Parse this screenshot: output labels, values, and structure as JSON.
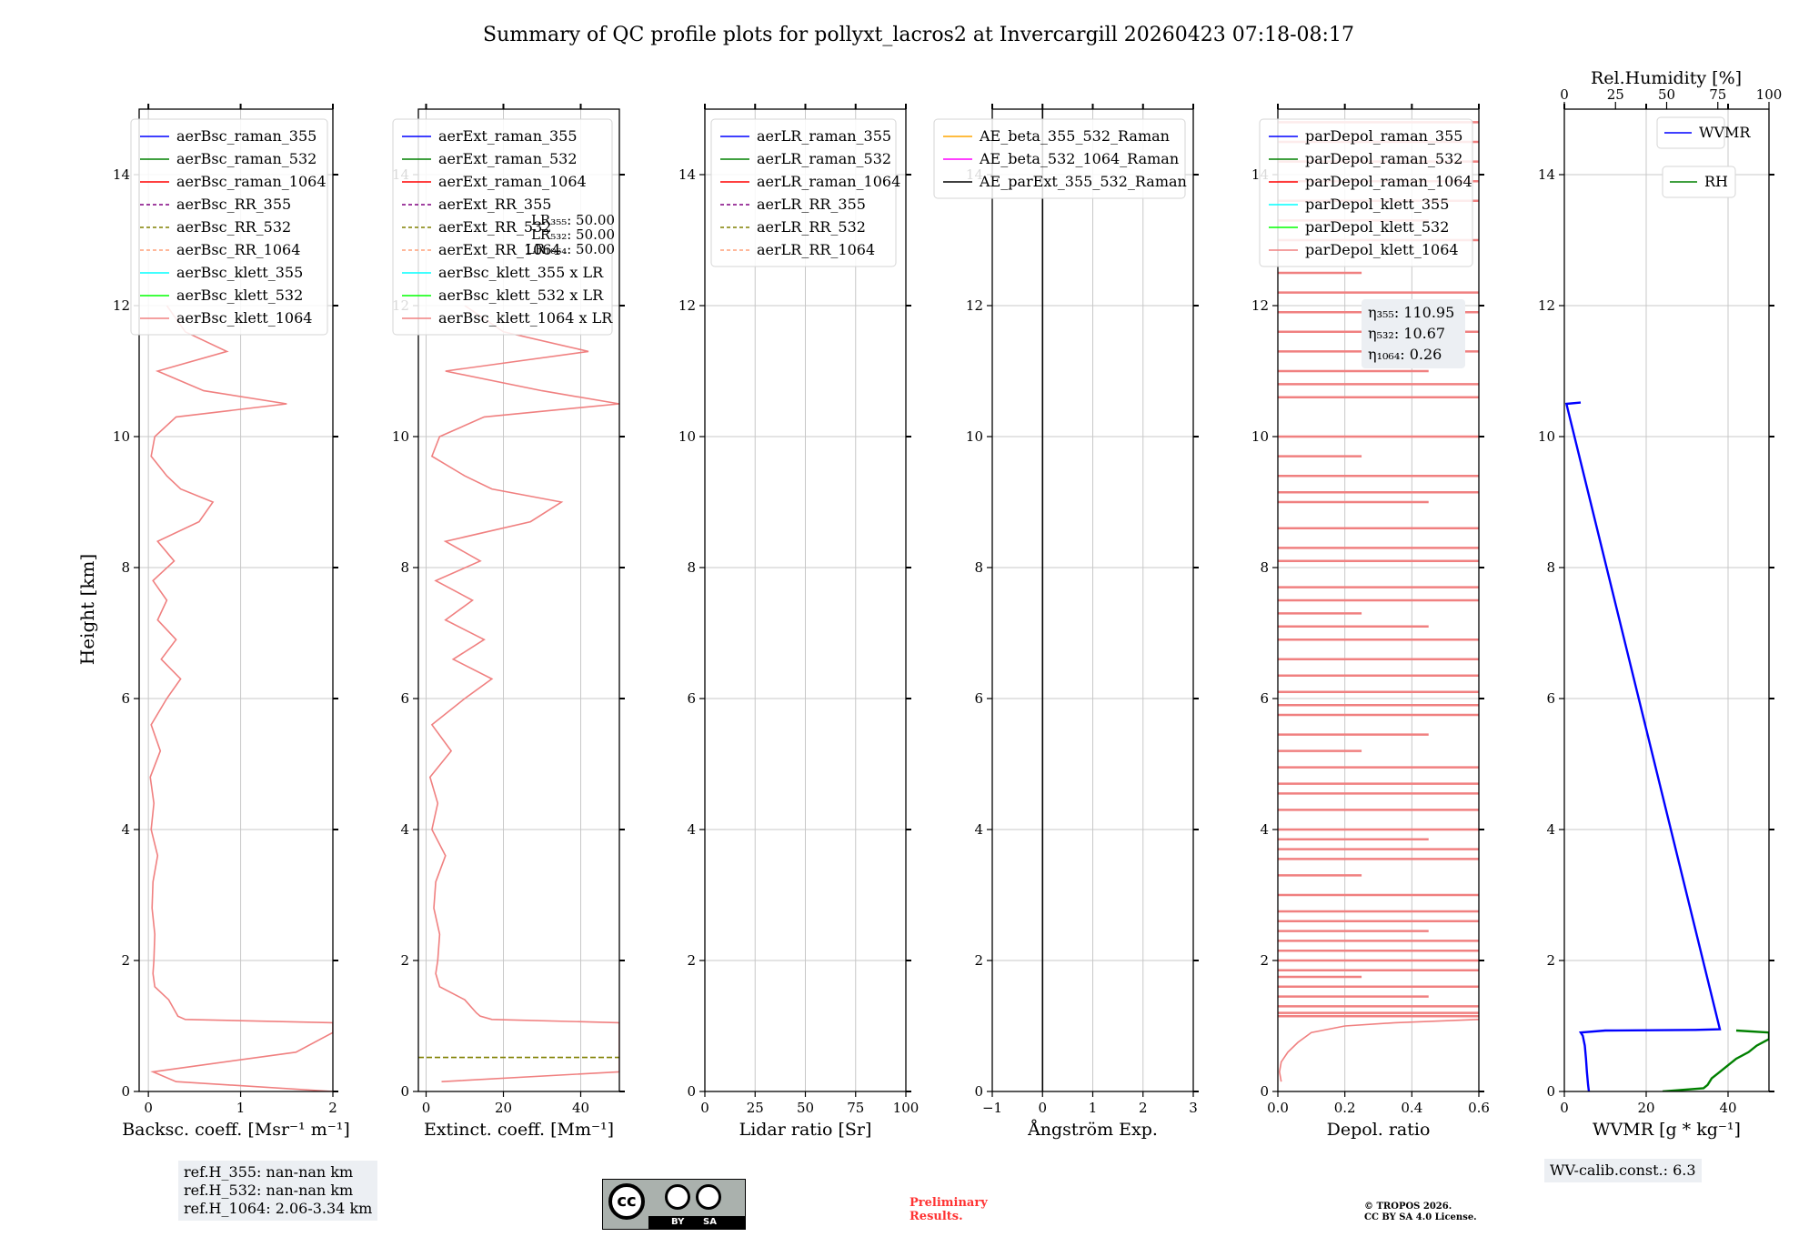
{
  "title": "Summary of QC profile plots for pollyxt_lacros2 at Invercargill 20260423 07:18-08:17",
  "ylabel": "Height [km]",
  "y_ticks": [
    "0",
    "2",
    "4",
    "6",
    "8",
    "10",
    "12",
    "14"
  ],
  "colors": {
    "klett_1064": "#f08080",
    "blue": "#0000ff",
    "green": "#008000",
    "red": "#ff0000",
    "purple": "#800080",
    "olive": "#808000",
    "salmon": "#ffa07a",
    "cyan": "#00ffff",
    "lime": "#00ff00",
    "orange": "#ffa500",
    "magenta": "#ff00ff",
    "black": "#000000"
  },
  "panels": {
    "bsc": {
      "xlabel": "Backsc. coeff. [Msr⁻¹ m⁻¹]",
      "x_ticks": [
        "0",
        "1",
        "2"
      ],
      "legend": [
        "aerBsc_raman_355",
        "aerBsc_raman_532",
        "aerBsc_raman_1064",
        "aerBsc_RR_355",
        "aerBsc_RR_532",
        "aerBsc_RR_1064",
        "aerBsc_klett_355",
        "aerBsc_klett_532",
        "aerBsc_klett_1064"
      ]
    },
    "ext": {
      "xlabel": "Extinct. coeff. [Mm⁻¹]",
      "x_ticks": [
        "0",
        "20",
        "40"
      ],
      "legend": [
        "aerExt_raman_355",
        "aerExt_raman_532",
        "aerExt_raman_1064",
        "aerExt_RR_355",
        "aerExt_RR_532",
        "aerExt_RR_1064",
        "aerBsc_klett_355 x LR",
        "aerBsc_klett_532 x LR",
        "aerBsc_klett_1064 x LR"
      ],
      "lr_labels": [
        "LR₃₅₅: 50.00",
        "LR₅₃₂: 50.00",
        "LR₁₀₆₄: 50.00"
      ]
    },
    "lr": {
      "xlabel": "Lidar ratio [Sr]",
      "x_ticks": [
        "0",
        "25",
        "50",
        "75",
        "100"
      ],
      "legend": [
        "aerLR_raman_355",
        "aerLR_raman_532",
        "aerLR_raman_1064",
        "aerLR_RR_355",
        "aerLR_RR_532",
        "aerLR_RR_1064"
      ]
    },
    "ae": {
      "xlabel": "Ångström Exp.",
      "x_ticks": [
        "−1",
        "0",
        "1",
        "2",
        "3"
      ],
      "legend": [
        "AE_beta_355_532_Raman",
        "AE_beta_532_1064_Raman",
        "AE_parExt_355_532_Raman"
      ]
    },
    "depol": {
      "xlabel": "Depol. ratio",
      "x_ticks": [
        "0.0",
        "0.2",
        "0.4",
        "0.6"
      ],
      "legend": [
        "parDepol_raman_355",
        "parDepol_raman_532",
        "parDepol_raman_1064",
        "parDepol_klett_355",
        "parDepol_klett_532",
        "parDepol_klett_1064"
      ],
      "eta": [
        "η₃₅₅: 110.95",
        "η₅₃₂: 10.67",
        "η₁₀₆₄: 0.26"
      ]
    },
    "wv": {
      "xlabel": "WVMR [g * kg⁻¹]",
      "x_ticks": [
        "0",
        "20",
        "40"
      ],
      "top_label": "Rel.Humidity [%]",
      "top_ticks": [
        "0",
        "25",
        "50",
        "75",
        "100"
      ],
      "legend_wvmr": "WVMR",
      "legend_rh": "RH"
    }
  },
  "ref_heights": [
    "ref.H_355: nan-nan km",
    "ref.H_532: nan-nan km",
    "ref.H_1064: 2.06-3.34 km"
  ],
  "wv_calib": "WV-calib.const.: 6.3",
  "cc_badge": {
    "cc": "cc",
    "by": "BY",
    "sa": "SA"
  },
  "preliminary": [
    "Preliminary",
    "Results."
  ],
  "copyright": [
    "© TROPOS 2026.",
    "CC BY SA 4.0 License."
  ],
  "chart_data": {
    "type": "line",
    "y_axis": {
      "label": "Height [km]",
      "range": [
        0,
        15
      ]
    },
    "panels": [
      {
        "name": "backscatter",
        "xlabel": "Backsc. coeff. [Msr⁻¹ m⁻¹]",
        "xlim": [
          -0.1,
          2.0
        ],
        "series": [
          {
            "name": "aerBsc_klett_1064",
            "y": [
              0.0,
              0.15,
              0.3,
              0.6,
              0.9,
              1.05,
              1.1,
              1.15,
              1.2,
              1.4,
              1.6,
              1.8,
              2.0,
              2.4,
              2.8,
              3.2,
              3.6,
              4.0,
              4.4,
              4.8,
              5.2,
              5.6,
              6.0,
              6.3,
              6.6,
              6.9,
              7.2,
              7.5,
              7.8,
              8.1,
              8.4,
              8.7,
              9.0,
              9.2,
              9.4,
              9.7,
              10.0,
              10.3,
              10.5,
              10.7,
              11.0,
              11.3,
              11.6,
              12.0
            ],
            "x": [
              2.0,
              0.3,
              0.05,
              1.6,
              2.0,
              2.0,
              0.4,
              0.32,
              0.3,
              0.22,
              0.07,
              0.05,
              0.06,
              0.07,
              0.04,
              0.05,
              0.1,
              0.03,
              0.06,
              0.02,
              0.13,
              0.03,
              0.2,
              0.35,
              0.14,
              0.3,
              0.1,
              0.2,
              0.05,
              0.28,
              0.1,
              0.55,
              0.7,
              0.35,
              0.2,
              0.03,
              0.07,
              0.3,
              1.5,
              0.6,
              0.1,
              0.85,
              0.4,
              0.2
            ]
          }
        ]
      },
      {
        "name": "extinction",
        "xlabel": "Extinct. coeff. [Mm⁻¹]",
        "xlim": [
          -2,
          50
        ],
        "series": [
          {
            "name": "aerBsc_klett_1064 x LR",
            "y": [
              0.15,
              0.3,
              0.6,
              0.9,
              1.05,
              1.1,
              1.15,
              1.2,
              1.4,
              1.6,
              1.8,
              2.0,
              2.4,
              2.8,
              3.2,
              3.6,
              4.0,
              4.4,
              4.8,
              5.2,
              5.6,
              6.0,
              6.3,
              6.6,
              6.9,
              7.2,
              7.5,
              7.8,
              8.1,
              8.4,
              8.7,
              9.0,
              9.2,
              9.4,
              9.7,
              10.0,
              10.3,
              10.5,
              10.7,
              11.0,
              11.3,
              11.6,
              12.0
            ],
            "x": [
              4,
              50,
              50,
              50,
              50,
              17,
              14,
              13,
              10,
              3.5,
              2.5,
              3,
              3.5,
              2,
              2.5,
              5,
              1.5,
              3,
              1,
              6.5,
              1.5,
              10,
              17,
              7,
              15,
              5,
              12,
              2.5,
              14,
              5,
              27,
              35,
              17,
              10,
              1.5,
              3.5,
              15,
              50,
              30,
              5,
              42,
              20,
              10
            ]
          },
          {
            "name": "aerExt_RR_532",
            "y": [
              0.52,
              0.52
            ],
            "x": [
              -2,
              50
            ]
          }
        ]
      },
      {
        "name": "lidar_ratio",
        "xlabel": "Lidar ratio [Sr]",
        "xlim": [
          0,
          100
        ],
        "series": []
      },
      {
        "name": "angstrom",
        "xlabel": "Ångström Exp.",
        "xlim": [
          -1,
          3
        ],
        "series": [
          {
            "name": "AE_parExt_355_532_Raman",
            "y": [
              0,
              15
            ],
            "x": [
              0,
              0
            ]
          }
        ]
      },
      {
        "name": "depol",
        "xlabel": "Depol. ratio",
        "xlim": [
          0.0,
          0.6
        ],
        "series": [
          {
            "name": "parDepol_klett_1064",
            "y": [
              0.15,
              0.3,
              0.45,
              0.6,
              0.75,
              0.9,
              1.0,
              1.05,
              1.1
            ],
            "x": [
              0.01,
              0.005,
              0.01,
              0.03,
              0.06,
              0.1,
              0.2,
              0.35,
              0.6
            ]
          }
        ],
        "horizontal_segments_y": [
          1.15,
          1.2,
          1.3,
          1.45,
          1.6,
          1.75,
          1.85,
          2.0,
          2.15,
          2.3,
          2.45,
          2.6,
          2.75,
          3.0,
          3.3,
          3.55,
          3.7,
          3.85,
          4.0,
          4.3,
          4.55,
          4.7,
          4.95,
          5.2,
          5.45,
          5.75,
          5.9,
          6.1,
          6.35,
          6.6,
          6.9,
          7.1,
          7.3,
          7.5,
          7.7,
          8.1,
          8.3,
          8.6,
          9.0,
          9.15,
          9.4,
          9.7,
          10.0,
          10.6,
          10.8,
          11.0,
          11.3,
          11.6,
          11.9,
          12.2,
          12.5,
          13.0,
          13.3,
          13.6,
          13.9,
          14.2,
          14.5,
          14.8
        ]
      },
      {
        "name": "water_vapor",
        "xlabel": "WVMR [g * kg⁻¹]",
        "xlim": [
          0,
          50
        ],
        "top_axis": {
          "label": "Rel.Humidity [%]",
          "range": [
            0,
            100
          ]
        },
        "series": [
          {
            "name": "WVMR",
            "y": [
              0.0,
              0.1,
              0.3,
              0.5,
              0.7,
              0.85,
              0.9,
              0.93,
              0.94,
              0.95,
              10.5,
              10.52
            ],
            "x": [
              6,
              5.8,
              5.5,
              5.3,
              5,
              4.5,
              4,
              10,
              32,
              38,
              0.5,
              4
            ]
          },
          {
            "name": "RH",
            "y": [
              0.0,
              0.05,
              0.1,
              0.2,
              0.3,
              0.4,
              0.5,
              0.6,
              0.7,
              0.8,
              0.9,
              0.93
            ],
            "x": [
              24,
              34,
              35,
              36,
              38,
              40,
              42,
              45,
              47,
              50,
              50,
              42
            ]
          }
        ]
      }
    ],
    "title": "Summary of QC profile plots for pollyxt_lacros2 at Invercargill 20260423 07:18-08:17"
  }
}
